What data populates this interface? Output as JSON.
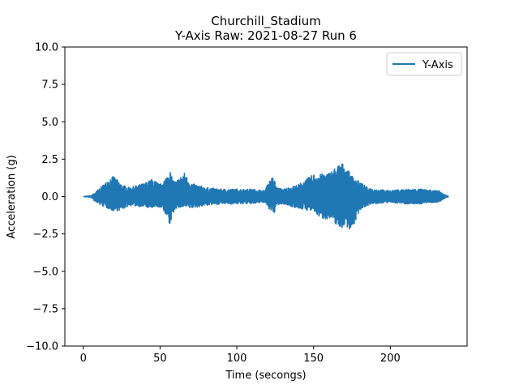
{
  "chart_data": {
    "type": "line",
    "title": "Churchill_Stadium",
    "subtitle": "Y-Axis Raw: 2021-08-27 Run 6",
    "xlabel": "Time (secongs)",
    "ylabel": "Acceleration (g)",
    "xlim": [
      -12,
      250
    ],
    "ylim": [
      -10.0,
      10.0
    ],
    "x_ticks": [
      "0",
      "50",
      "100",
      "150",
      "200"
    ],
    "y_ticks": [
      "10.0",
      "7.5",
      "5.0",
      "2.5",
      "0.0",
      "−2.5",
      "−5.0",
      "−7.5",
      "−10.0"
    ],
    "grid": false,
    "legend_position": "upper right",
    "series": [
      {
        "name": "Y-Axis",
        "color": "#1f77b4",
        "x_range": [
          0,
          238
        ],
        "envelope": {
          "x": [
            0,
            5,
            8,
            12,
            18,
            20,
            25,
            30,
            40,
            45,
            50,
            54,
            56,
            58,
            60,
            66,
            70,
            80,
            90,
            100,
            110,
            118,
            122,
            124,
            126,
            130,
            140,
            150,
            155,
            160,
            165,
            168,
            170,
            175,
            180,
            185,
            190,
            200,
            210,
            220,
            228,
            232,
            234,
            238
          ],
          "upper": [
            0.0,
            0.05,
            0.3,
            0.7,
            1.3,
            1.35,
            0.8,
            0.6,
            0.9,
            1.2,
            0.8,
            1.3,
            1.9,
            1.2,
            1.0,
            1.6,
            0.9,
            0.6,
            0.5,
            0.5,
            0.5,
            0.4,
            1.2,
            1.3,
            0.6,
            0.5,
            0.8,
            1.5,
            1.5,
            1.6,
            2.0,
            2.3,
            2.1,
            1.4,
            1.0,
            0.6,
            0.5,
            0.4,
            0.5,
            0.5,
            0.4,
            0.4,
            0.2,
            0.0
          ],
          "lower": [
            0.0,
            -0.05,
            -0.4,
            -0.6,
            -0.9,
            -1.0,
            -0.9,
            -0.6,
            -0.7,
            -0.8,
            -0.7,
            -1.2,
            -2.1,
            -1.3,
            -0.8,
            -0.7,
            -0.8,
            -0.6,
            -0.5,
            -0.5,
            -0.5,
            -0.4,
            -1.0,
            -1.2,
            -0.6,
            -0.5,
            -0.8,
            -1.0,
            -1.5,
            -1.5,
            -1.9,
            -2.2,
            -1.9,
            -2.3,
            -0.9,
            -0.6,
            -0.5,
            -0.4,
            -0.5,
            -0.5,
            -0.4,
            -0.4,
            -0.2,
            0.0
          ]
        }
      }
    ]
  }
}
